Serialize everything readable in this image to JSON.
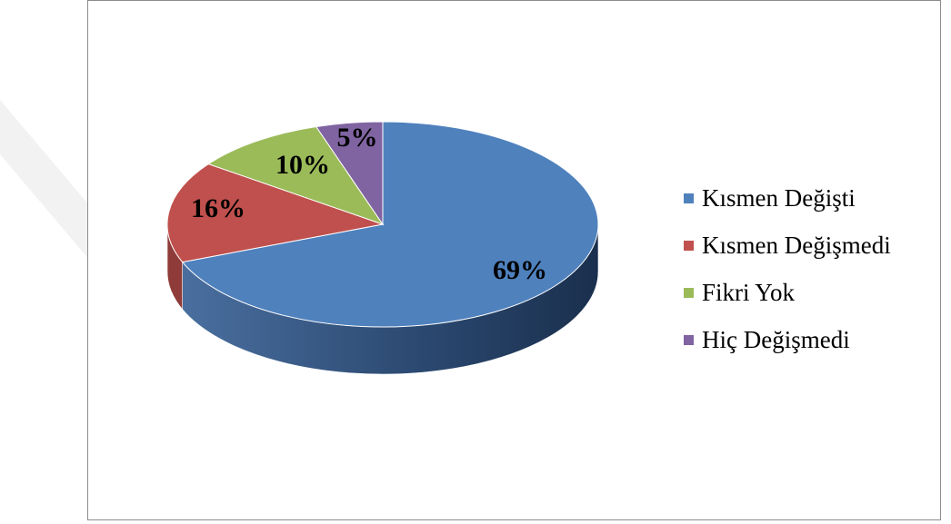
{
  "chart_data": {
    "type": "pie",
    "title": "",
    "categories": [
      "Kısmen Değişti",
      "Kısmen Değişmedi",
      "Fikri Yok",
      "Hiç Değişmedi"
    ],
    "values": [
      69,
      16,
      10,
      5
    ],
    "data_labels": [
      "69%",
      "16%",
      "10%",
      "5%"
    ],
    "colors": [
      "#4f81bd",
      "#c0504d",
      "#9bbb59",
      "#8064a2"
    ],
    "style": "3d",
    "legend_position": "right"
  }
}
